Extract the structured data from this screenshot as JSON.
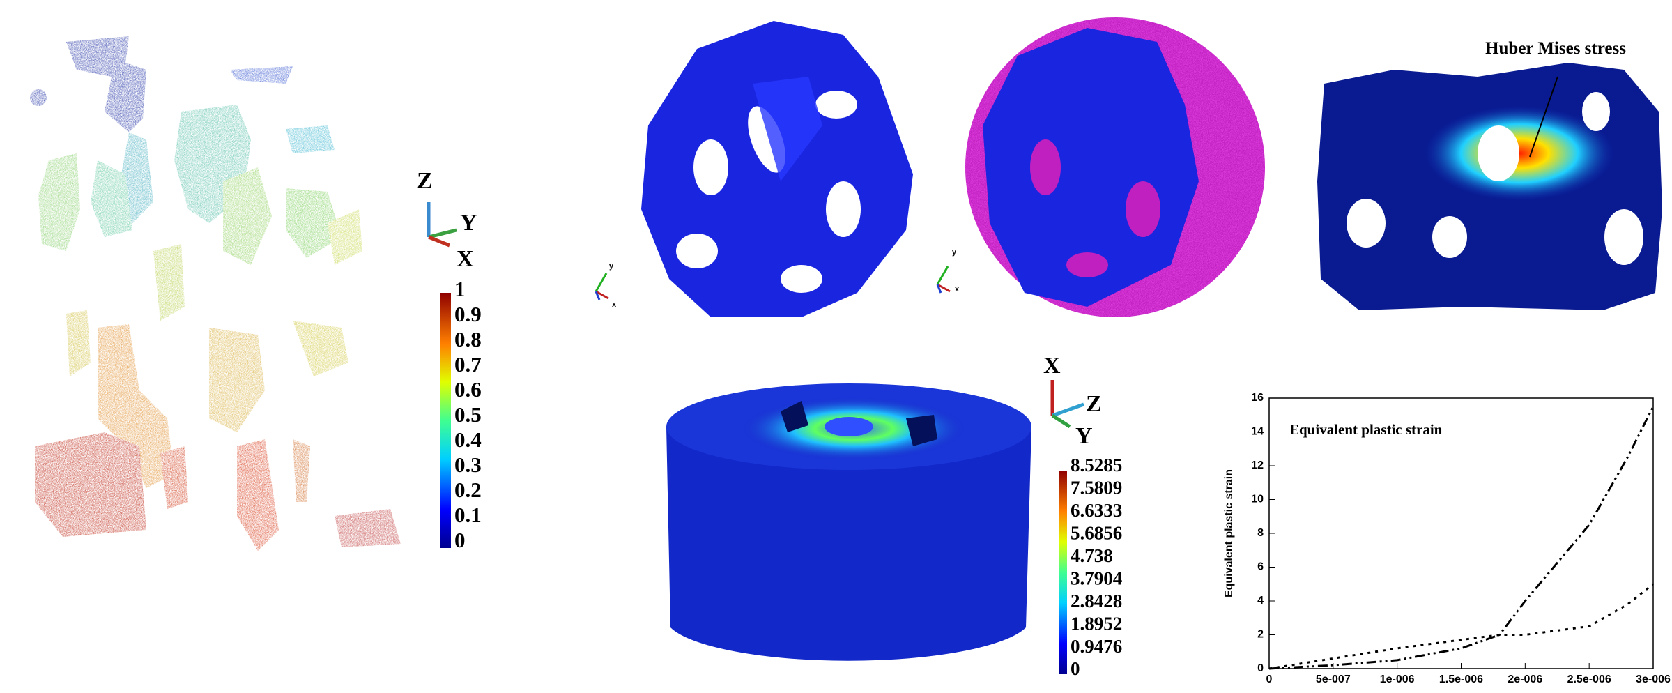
{
  "panel_a": {
    "axes": [
      "Z",
      "Y",
      "X"
    ],
    "colorbar": [
      "1",
      "0.9",
      "0.8",
      "0.7",
      "0.6",
      "0.5",
      "0.4",
      "0.3",
      "0.2",
      "0.1",
      "0"
    ]
  },
  "panel_b": {
    "axes": [
      "y",
      "x"
    ]
  },
  "panel_c": {
    "axes": [
      "y",
      "x"
    ]
  },
  "panel_d": {
    "annotation": "Huber Mises stress"
  },
  "panel_e": {
    "axes": [
      "X",
      "Z",
      "Y"
    ],
    "colorbar": [
      "8.5285",
      "7.5809",
      "6.6333",
      "5.6856",
      "4.738",
      "3.7904",
      "2.8428",
      "1.8952",
      "0.9476",
      "0"
    ]
  },
  "chart_data": {
    "type": "line",
    "title": "Equivalent plastic strain",
    "y_label": "Equivalent plastic strain",
    "x": [
      0,
      5e-07,
      1e-06,
      1.5e-06,
      1.8e-06,
      2e-06,
      2.5e-06,
      2.8e-06,
      3e-06
    ],
    "series": [
      {
        "color": "#000000",
        "values": [
          0,
          0.2,
          0.5,
          1.2,
          2.0,
          4.0,
          8.5,
          12.5,
          15.5
        ]
      },
      {
        "color": "#000000",
        "values": [
          0,
          0.6,
          1.2,
          1.7,
          2.0,
          2.0,
          2.5,
          3.8,
          5.0
        ]
      }
    ],
    "xlim": [
      0,
      3e-06
    ],
    "ylim": [
      0,
      16
    ],
    "xticks": [
      0,
      {
        "value": 5e-07,
        "label": "5e-007"
      },
      {
        "value": 1e-06,
        "label": "1e-006"
      },
      {
        "value": 1.5e-06,
        "label": "1.5e-006"
      },
      {
        "value": 2e-06,
        "label": "2e-006"
      },
      {
        "value": 2.5e-06,
        "label": "2.5e-006"
      },
      {
        "value": 3e-06,
        "label": "3e-006"
      }
    ],
    "yticks": [
      0,
      2,
      4,
      6,
      8,
      10,
      12,
      14,
      16
    ]
  }
}
